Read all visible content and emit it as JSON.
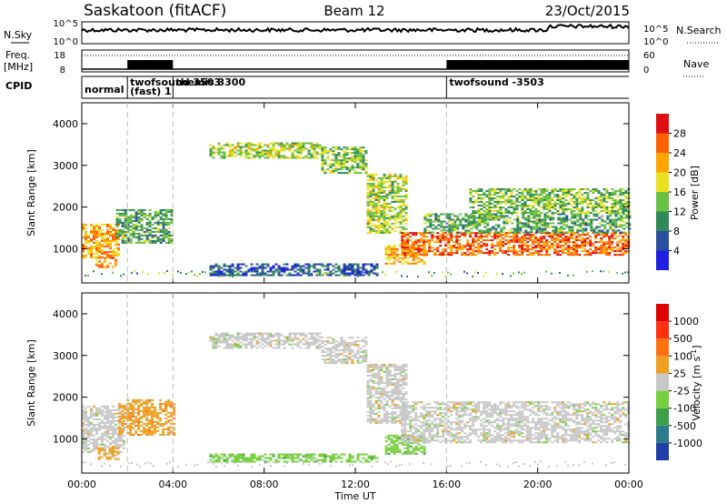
{
  "header": {
    "site": "Saskatoon (fitACF)",
    "beam": "Beam 12",
    "date": "23/Oct/2015"
  },
  "top_panels": {
    "nsky_label": "N.Sky",
    "nsearch_label": "N.Search",
    "freq_label": "Freq.",
    "freq_unit": "[MHz]",
    "nave_label": "Nave",
    "cpid_label": "CPID",
    "noise_ticks_left": [
      "10^5",
      "10^0"
    ],
    "noise_ticks_right": [
      "10^5",
      "10^0"
    ],
    "freq_ticks_left": [
      "18",
      "8"
    ],
    "freq_ticks_right": [
      "60",
      "0"
    ]
  },
  "cpid_modes": [
    {
      "label": "normal",
      "start_h": 0.0,
      "end_h": 2.0
    },
    {
      "label": "twofsound 3503",
      "label2": "(fast) 1",
      "start_h": 2.0,
      "end_h": 4.0
    },
    {
      "label": "themis 3300",
      "start_h": 4.0,
      "end_h": 16.0
    },
    {
      "label": "twofsound -3503",
      "start_h": 16.0,
      "end_h": 24.0
    }
  ],
  "colors": {
    "power_scale": [
      "#2020e0",
      "#2a4f9e",
      "#2e8b57",
      "#6abf45",
      "#e8e020",
      "#ffa500",
      "#ff6000",
      "#e01010"
    ],
    "velocity_scale": [
      "#1f3fa8",
      "#2a7c8c",
      "#3aa04a",
      "#77d040",
      "#c8c8c8",
      "#f0a020",
      "#ff7010",
      "#ff3010",
      "#e00000"
    ]
  },
  "chart_data": [
    {
      "type": "heatmap",
      "title": "Power",
      "xlabel": "Time UT",
      "ylabel": "Slant Range [km]",
      "x_ticks": [
        "00:00",
        "04:00",
        "08:00",
        "12:00",
        "16:00",
        "20:00",
        "00:00"
      ],
      "xlim": [
        0,
        24
      ],
      "y_ticks": [
        "1000",
        "2000",
        "3000",
        "4000"
      ],
      "ylim": [
        180,
        4500
      ],
      "colorbar": {
        "label": "Power [dB]",
        "ticks": [
          "4",
          "8",
          "12",
          "16",
          "20",
          "24",
          "28"
        ],
        "range": [
          0,
          32
        ]
      },
      "regions": [
        {
          "t0": 0.0,
          "t1": 1.6,
          "r0": 800,
          "r1": 1600,
          "value": 22
        },
        {
          "t0": 0.6,
          "t1": 1.5,
          "r0": 550,
          "r1": 800,
          "value": 24
        },
        {
          "t0": 1.5,
          "t1": 4.0,
          "r0": 1150,
          "r1": 1950,
          "value": 12
        },
        {
          "t0": 5.6,
          "t1": 10.5,
          "r0": 3200,
          "r1": 3550,
          "value": 16
        },
        {
          "t0": 10.5,
          "t1": 12.5,
          "r0": 2800,
          "r1": 3450,
          "value": 14
        },
        {
          "t0": 12.5,
          "t1": 14.2,
          "r0": 1400,
          "r1": 2800,
          "value": 16
        },
        {
          "t0": 13.3,
          "t1": 15.0,
          "r0": 650,
          "r1": 1100,
          "value": 22
        },
        {
          "t0": 14.0,
          "t1": 24.0,
          "r0": 850,
          "r1": 1400,
          "value": 26
        },
        {
          "t0": 15.0,
          "t1": 24.0,
          "r0": 1400,
          "r1": 1850,
          "value": 12
        },
        {
          "t0": 17.0,
          "t1": 24.0,
          "r0": 1850,
          "r1": 2450,
          "value": 14
        },
        {
          "t0": 5.6,
          "t1": 13.0,
          "r0": 350,
          "r1": 650,
          "value": 6
        }
      ]
    },
    {
      "type": "heatmap",
      "title": "Velocity",
      "xlabel": "Time UT",
      "ylabel": "Slant Range [km]",
      "x_ticks": [
        "00:00",
        "04:00",
        "08:00",
        "12:00",
        "16:00",
        "20:00",
        "00:00"
      ],
      "xlim": [
        0,
        24
      ],
      "y_ticks": [
        "1000",
        "2000",
        "3000",
        "4000"
      ],
      "ylim": [
        180,
        4500
      ],
      "colorbar": {
        "label": "Velocity [m s",
        "ticks": [
          "1000",
          "500",
          "100",
          "25",
          "-25",
          "-100",
          "-500",
          "-1000"
        ],
        "range": [
          -1200,
          1200
        ]
      },
      "regions": [
        {
          "t0": 0.0,
          "t1": 1.8,
          "r0": 700,
          "r1": 1800,
          "value": 0
        },
        {
          "t0": 0.7,
          "t1": 1.6,
          "r0": 500,
          "r1": 800,
          "value": 150
        },
        {
          "t0": 1.6,
          "t1": 4.0,
          "r0": 1100,
          "r1": 1950,
          "value": 300
        },
        {
          "t0": 5.6,
          "t1": 10.5,
          "r0": 3200,
          "r1": 3550,
          "value": 0
        },
        {
          "t0": 10.5,
          "t1": 12.5,
          "r0": 2800,
          "r1": 3450,
          "value": 0
        },
        {
          "t0": 12.5,
          "t1": 14.2,
          "r0": 1400,
          "r1": 2800,
          "value": 0
        },
        {
          "t0": 13.3,
          "t1": 15.0,
          "r0": 650,
          "r1": 1100,
          "value": -300
        },
        {
          "t0": 14.0,
          "t1": 24.0,
          "r0": 900,
          "r1": 1900,
          "value": 0
        },
        {
          "t0": 5.6,
          "t1": 13.0,
          "r0": 450,
          "r1": 650,
          "value": -300
        }
      ]
    }
  ]
}
